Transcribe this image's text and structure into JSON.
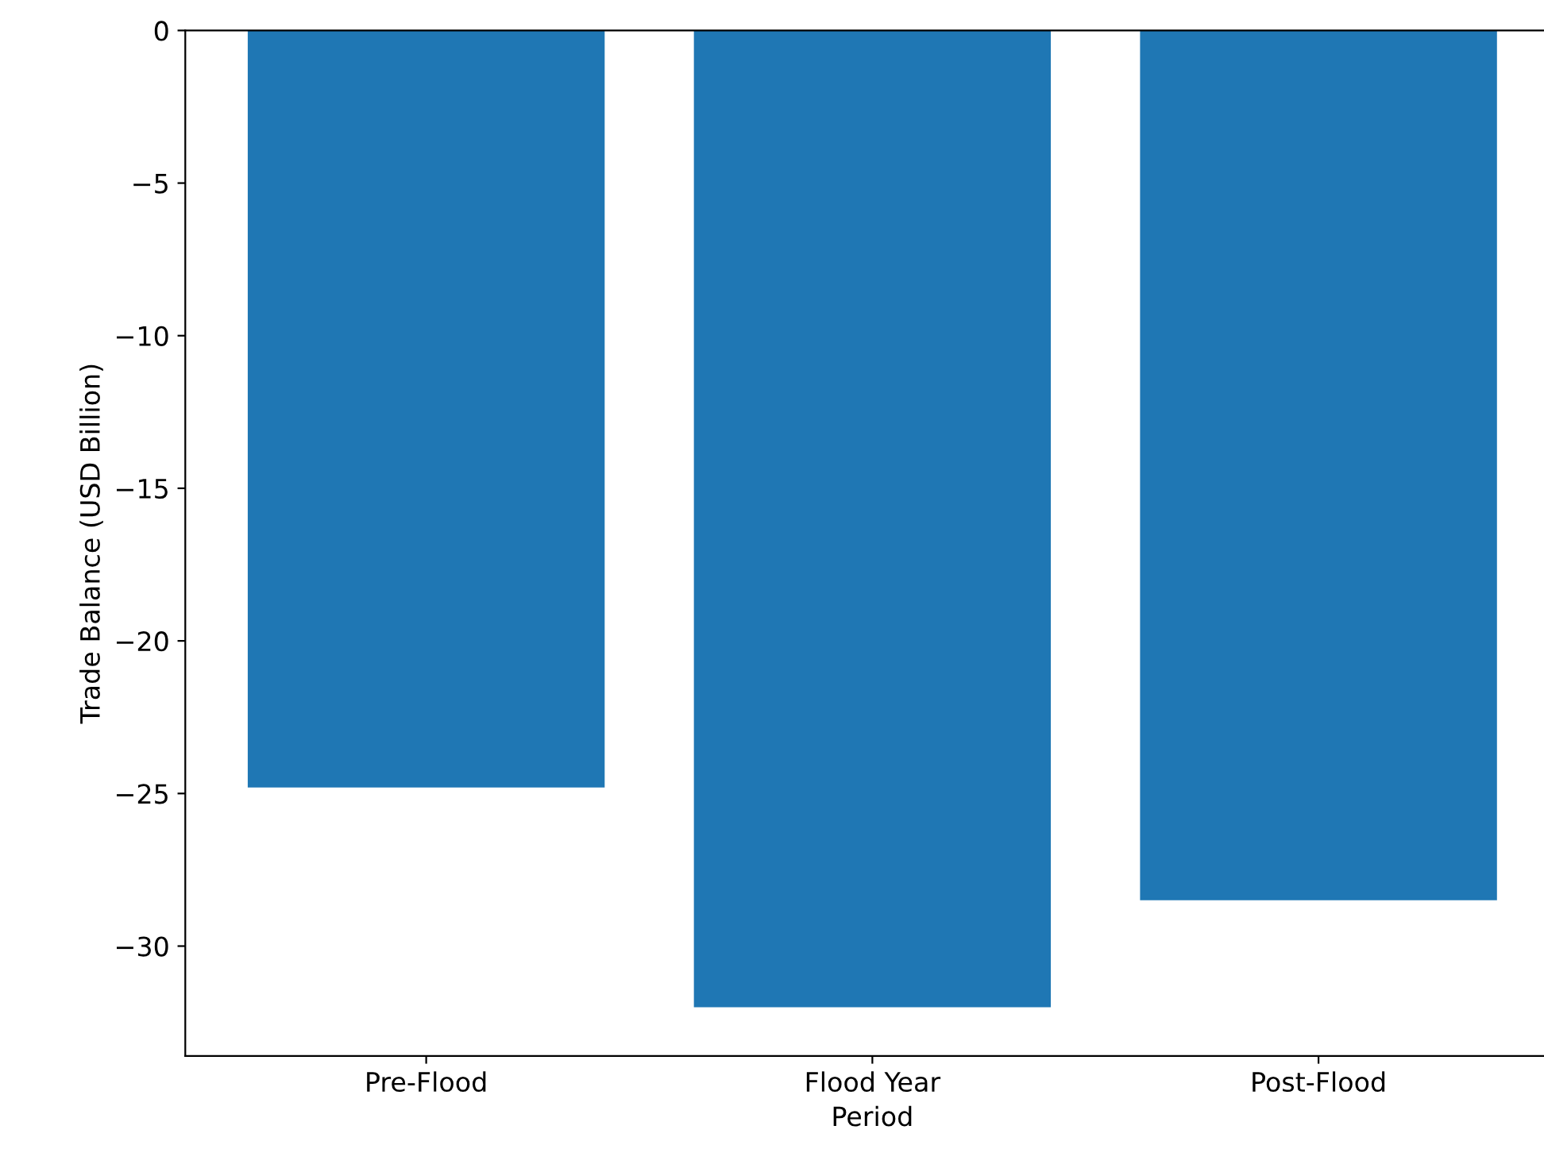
{
  "chart_data": {
    "type": "bar",
    "xlabel": "Period",
    "ylabel": "Trade Balance (USD Billion)",
    "categories": [
      "Pre-Flood",
      "Flood Year",
      "Post-Flood"
    ],
    "values": [
      -24.8,
      -32.0,
      -28.5
    ],
    "color": "#1f77b4",
    "ylim": [
      -33.6,
      0
    ],
    "yticks": [
      0,
      -5,
      -10,
      -15,
      -20,
      -25,
      -30
    ],
    "grid": false
  }
}
